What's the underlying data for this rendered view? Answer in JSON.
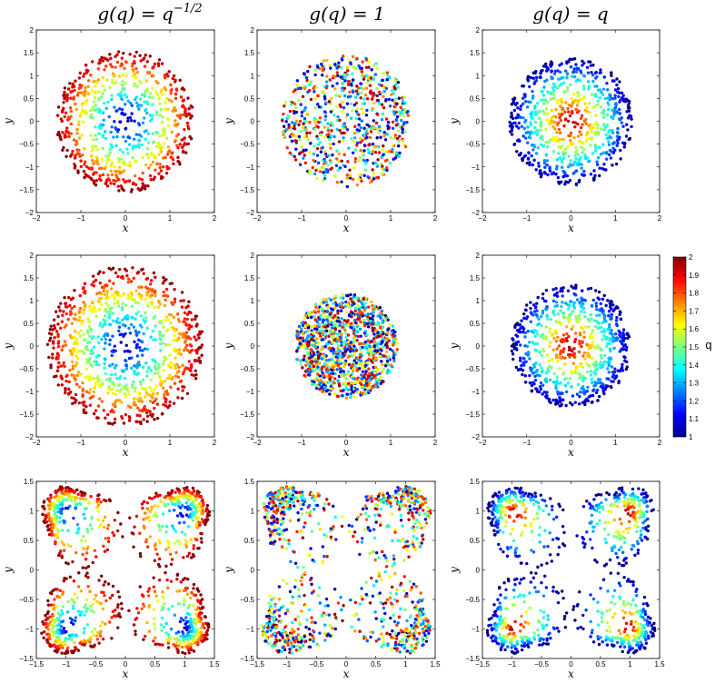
{
  "figure": {
    "column_titles": [
      {
        "base": "g(q) = q",
        "sup": "−1/2"
      },
      {
        "base": "g(q) = 1",
        "sup": ""
      },
      {
        "base": "g(q) = q",
        "sup": ""
      }
    ],
    "colorbar": {
      "label": "q",
      "ticks": [
        "1",
        "1.1",
        "1.2",
        "1.3",
        "1.4",
        "1.5",
        "1.6",
        "1.7",
        "1.8",
        "1.9",
        "2"
      ],
      "range": [
        1,
        2
      ]
    }
  },
  "chart_data": [
    {
      "type": "scatter",
      "id": "r1c1",
      "row": 1,
      "col": 1,
      "title": "g(q) = q^(-1/2)",
      "xlabel": "x",
      "ylabel": "y",
      "xlim": [
        -2,
        2
      ],
      "ylim": [
        -2,
        2
      ],
      "xticks": [
        "−2",
        "−1",
        "0",
        "1",
        "2"
      ],
      "yticks": [
        "2",
        "1.5",
        "1",
        "0.5",
        "0",
        "−0.5",
        "−1",
        "−1.5",
        "−2"
      ],
      "distribution": {
        "shape": "disk",
        "radius": 1.55,
        "q_profile": "q increases with radius (1 at center, 2 at rim)",
        "points": 700
      }
    },
    {
      "type": "scatter",
      "id": "r1c2",
      "row": 1,
      "col": 2,
      "title": "g(q) = 1",
      "xlabel": "x",
      "ylabel": "y",
      "xlim": [
        -2,
        2
      ],
      "ylim": [
        -2,
        2
      ],
      "xticks": [
        "−2",
        "−1",
        "0",
        "1",
        "2"
      ],
      "yticks": [
        "2",
        "1.5",
        "1",
        "0.5",
        "0",
        "−0.5",
        "−1",
        "−1.5",
        "−2"
      ],
      "distribution": {
        "shape": "disk",
        "radius": 1.45,
        "q_profile": "q random, uniform in [1,2]",
        "points": 700
      }
    },
    {
      "type": "scatter",
      "id": "r1c3",
      "row": 1,
      "col": 3,
      "title": "g(q) = q",
      "xlabel": "x",
      "ylabel": "y",
      "xlim": [
        -2,
        2
      ],
      "ylim": [
        -2,
        2
      ],
      "xticks": [
        "−2",
        "−1",
        "0",
        "1",
        "2"
      ],
      "yticks": [
        "2",
        "1.5",
        "1",
        "0.5",
        "0",
        "−0.5",
        "−1",
        "−1.5",
        "−2"
      ],
      "distribution": {
        "shape": "disk",
        "radius": 1.4,
        "q_profile": "q decreases with radius (2 at center, 1 at rim)",
        "points": 700
      }
    },
    {
      "type": "scatter",
      "id": "r2c1",
      "row": 2,
      "col": 1,
      "title": "",
      "xlabel": "x",
      "ylabel": "y",
      "xlim": [
        -2,
        2
      ],
      "ylim": [
        -2,
        2
      ],
      "xticks": [
        "−2",
        "−1",
        "0",
        "1",
        "2"
      ],
      "yticks": [
        "2",
        "1.5",
        "1",
        "0.5",
        "0",
        "−0.5",
        "−1",
        "−1.5",
        "−2"
      ],
      "distribution": {
        "shape": "disk",
        "radius": 1.75,
        "q_profile": "q increases with radius (1 at center, 2 at rim)",
        "points": 900
      }
    },
    {
      "type": "scatter",
      "id": "r2c2",
      "row": 2,
      "col": 2,
      "title": "",
      "xlabel": "x",
      "ylabel": "y",
      "xlim": [
        -2,
        2
      ],
      "ylim": [
        -2,
        2
      ],
      "xticks": [
        "−2",
        "−1",
        "0",
        "1",
        "2"
      ],
      "yticks": [
        "2",
        "1.5",
        "1",
        "0.5",
        "0",
        "−0.5",
        "−1",
        "−1.5",
        "−2"
      ],
      "distribution": {
        "shape": "disk",
        "radius": 1.15,
        "q_profile": "q random, uniform in [1,2]",
        "points": 1100
      }
    },
    {
      "type": "scatter",
      "id": "r2c3",
      "row": 2,
      "col": 3,
      "title": "",
      "xlabel": "x",
      "ylabel": "y",
      "xlim": [
        -2,
        2
      ],
      "ylim": [
        -2,
        2
      ],
      "xticks": [
        "−2",
        "−1",
        "0",
        "1",
        "2"
      ],
      "yticks": [
        "2",
        "1.5",
        "1",
        "0.5",
        "0",
        "−0.5",
        "−1",
        "−1.5",
        "−2"
      ],
      "distribution": {
        "shape": "disk",
        "radius": 1.35,
        "q_profile": "q decreases with radius (2 at center, 1 at rim)",
        "points": 700
      }
    },
    {
      "type": "scatter",
      "id": "r3c1",
      "row": 3,
      "col": 1,
      "title": "",
      "xlabel": "x",
      "ylabel": "y",
      "xlim": [
        -1.5,
        1.5
      ],
      "ylim": [
        -1.5,
        1.5
      ],
      "xticks": [
        "−1.5",
        "−1",
        "−0.5",
        "0",
        "0.5",
        "1",
        "1.5"
      ],
      "yticks": [
        "1.5",
        "1",
        "0.5",
        "0",
        "−0.5",
        "−1",
        "−1.5"
      ],
      "distribution": {
        "shape": "four corner clusters",
        "centers": [
          [
            -1,
            1
          ],
          [
            1,
            1
          ],
          [
            -1,
            -1
          ],
          [
            1,
            -1
          ]
        ],
        "q_profile": "q increases with distance from cluster center",
        "points": 1100
      }
    },
    {
      "type": "scatter",
      "id": "r3c2",
      "row": 3,
      "col": 2,
      "title": "",
      "xlabel": "x",
      "ylabel": "y",
      "xlim": [
        -1.5,
        1.5
      ],
      "ylim": [
        -1.5,
        1.5
      ],
      "xticks": [
        "−1.5",
        "−1",
        "−0.5",
        "0",
        "0.5",
        "1",
        "1.5"
      ],
      "yticks": [
        "1.5",
        "1",
        "0.5",
        "0",
        "−0.5",
        "−1",
        "−1.5"
      ],
      "distribution": {
        "shape": "four corner clusters",
        "centers": [
          [
            -1,
            1
          ],
          [
            1,
            1
          ],
          [
            -1,
            -1
          ],
          [
            1,
            -1
          ]
        ],
        "q_profile": "q random, uniform in [1,2]",
        "points": 1000
      }
    },
    {
      "type": "scatter",
      "id": "r3c3",
      "row": 3,
      "col": 3,
      "title": "",
      "xlabel": "x",
      "ylabel": "y",
      "xlim": [
        -1.5,
        1.5
      ],
      "ylim": [
        -1.5,
        1.5
      ],
      "xticks": [
        "−1.5",
        "−1",
        "−0.5",
        "0",
        "0.5",
        "1",
        "1.5"
      ],
      "yticks": [
        "1.5",
        "1",
        "0.5",
        "0",
        "−0.5",
        "−1",
        "−1.5"
      ],
      "distribution": {
        "shape": "four corner clusters",
        "centers": [
          [
            -1,
            1
          ],
          [
            1,
            1
          ],
          [
            -1,
            -1
          ],
          [
            1,
            -1
          ]
        ],
        "q_profile": "q decreases with distance from cluster center",
        "points": 900
      }
    }
  ]
}
